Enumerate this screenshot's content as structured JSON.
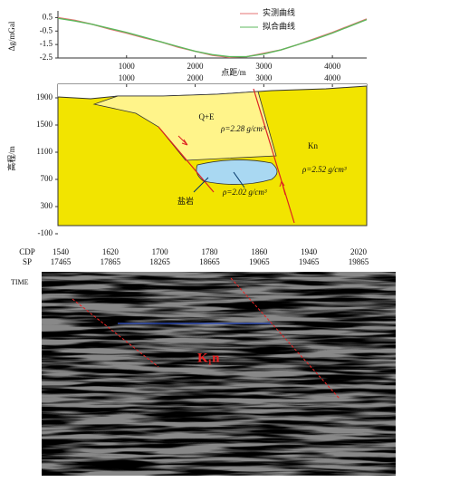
{
  "chart_data": [
    {
      "type": "line",
      "y_label": "Δg/mGal",
      "x_label": "点距/m",
      "x": [
        0,
        250,
        500,
        750,
        1000,
        1250,
        1500,
        1750,
        2000,
        2250,
        2500,
        2750,
        3000,
        3250,
        3500,
        3750,
        4000,
        4250,
        4500
      ],
      "series": [
        {
          "name": "实测曲线",
          "color": "#e57373",
          "values": [
            0.5,
            0.3,
            0.0,
            -0.35,
            -0.65,
            -1.0,
            -1.3,
            -1.7,
            -2.0,
            -2.3,
            -2.45,
            -2.4,
            -2.15,
            -1.9,
            -1.5,
            -1.05,
            -0.6,
            -0.1,
            0.4
          ]
        },
        {
          "name": "拟合曲线",
          "color": "#5cb85c",
          "values": [
            0.45,
            0.25,
            0.0,
            -0.3,
            -0.6,
            -0.95,
            -1.3,
            -1.65,
            -2.0,
            -2.25,
            -2.4,
            -2.4,
            -2.2,
            -1.9,
            -1.5,
            -1.1,
            -0.65,
            -0.15,
            0.35
          ]
        }
      ],
      "xlim": [
        0,
        4500
      ],
      "ylim": [
        -2.5,
        1.0
      ],
      "xticks": [
        1000,
        2000,
        3000,
        4000
      ],
      "yticks": [
        0.5,
        -0.5,
        -1.5,
        -2.5
      ]
    },
    {
      "type": "section",
      "y_label": "高程/m",
      "xlim": [
        0,
        4500
      ],
      "ylim": [
        -100,
        2100
      ],
      "xticks": [
        1000,
        2000,
        3000,
        4000
      ],
      "yticks": [
        1900,
        1500,
        1100,
        700,
        300,
        -100
      ],
      "annotations": [
        "Q+E",
        "ρ=2.28 g/cm³",
        "Kn",
        "ρ=2.52 g/cm³",
        "盐岩",
        "ρ=2.02 g/cm³"
      ]
    }
  ],
  "seismic": {
    "cdp_label": "CDP",
    "cdp": [
      1540,
      1620,
      1700,
      1780,
      1860,
      1940,
      2020
    ],
    "sp_label": "SP",
    "sp": [
      17465,
      17865,
      18265,
      18665,
      19065,
      19465,
      19865
    ],
    "time_label": "TIME",
    "formation": "K₁n"
  }
}
